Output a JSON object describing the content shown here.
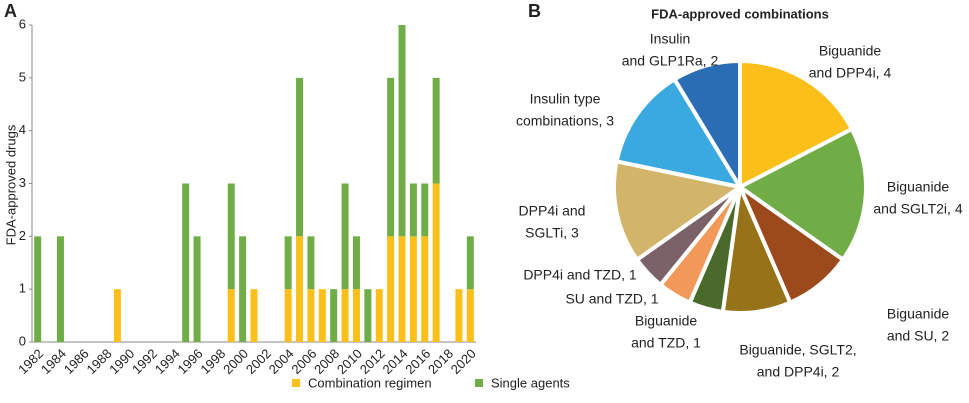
{
  "chart_data": [
    {
      "type": "stacked-bar",
      "panel": "A",
      "y_label": "FDA-approved drugs",
      "categories": [
        "1982",
        null,
        "1984",
        null,
        "1986",
        null,
        "1988",
        null,
        "1990",
        null,
        "1992",
        null,
        "1994",
        null,
        "1996",
        null,
        "1998",
        null,
        "2000",
        null,
        "2002",
        null,
        "2004",
        null,
        "2006",
        null,
        "2008",
        null,
        "2010",
        null,
        "2012",
        null,
        "2014",
        null,
        "2016",
        null,
        "2018",
        null,
        "2020"
      ],
      "series": [
        {
          "name": "Combination regimen",
          "color": "#fbbf1a",
          "values": [
            0,
            0,
            0,
            0,
            0,
            0,
            0,
            1,
            0,
            0,
            0,
            0,
            0,
            0,
            0,
            0,
            0,
            1,
            0,
            1,
            0,
            0,
            1,
            2,
            1,
            1,
            0,
            1,
            1,
            0,
            1,
            2,
            2,
            2,
            2,
            3,
            0,
            1,
            1
          ]
        },
        {
          "name": "Single agents",
          "color": "#70ad47",
          "values": [
            2,
            0,
            2,
            0,
            0,
            0,
            0,
            0,
            0,
            0,
            0,
            0,
            0,
            3,
            2,
            0,
            0,
            2,
            2,
            0,
            0,
            0,
            1,
            3,
            1,
            0,
            1,
            2,
            1,
            1,
            0,
            3,
            4,
            1,
            1,
            2,
            0,
            0,
            1
          ]
        }
      ],
      "ylim": [
        0,
        6
      ],
      "yticks": [
        0,
        1,
        2,
        3,
        4,
        5,
        6
      ],
      "legend": "bottom"
    },
    {
      "type": "pie",
      "panel": "B",
      "title": "FDA-approved combinations",
      "labels": [
        [
          "Biguanide",
          "and DPP4i, 4"
        ],
        [
          "Biguanide",
          "and SGLT2i, 4"
        ],
        [
          "Biguanide",
          "and SU, 2"
        ],
        [
          "Biguanide, SGLT2,",
          "and DPP4i, 2"
        ],
        [
          "Biguanide",
          "and TZD, 1"
        ],
        [
          "SU and TZD, 1"
        ],
        [
          "DPP4i and TZD, 1"
        ],
        [
          "DPP4i and",
          "SGLTi, 3"
        ],
        [
          "Insulin type",
          "combinations, 3"
        ],
        [
          "Insulin",
          "and GLP1Ra, 2"
        ]
      ],
      "values": [
        4,
        4,
        2,
        2,
        1,
        1,
        1,
        3,
        3,
        2
      ],
      "colors": [
        "#fbbf1a",
        "#70ad47",
        "#9c4a1c",
        "#967219",
        "#4a6a2c",
        "#f2995a",
        "#7b6168",
        "#d2b46a",
        "#3aa9e0",
        "#2a6db4"
      ]
    }
  ]
}
